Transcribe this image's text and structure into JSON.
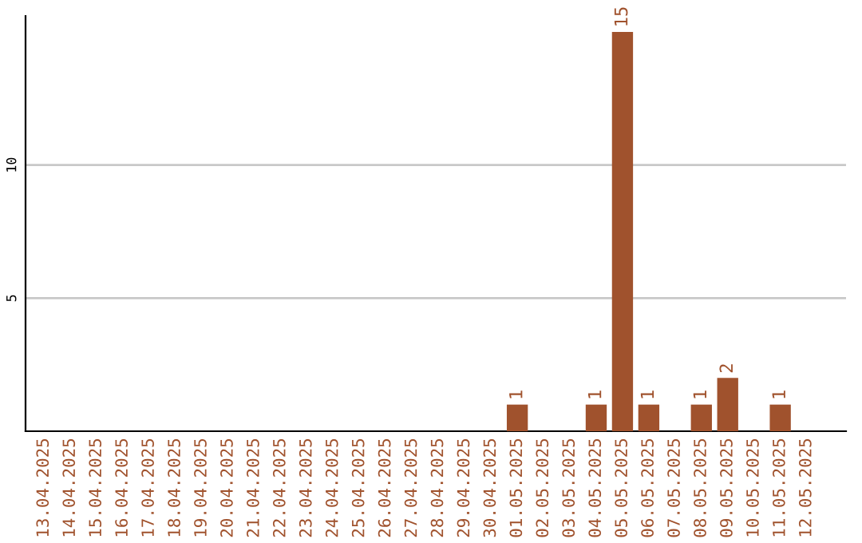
{
  "chart_data": {
    "type": "bar",
    "categories": [
      "13.04.2025",
      "14.04.2025",
      "15.04.2025",
      "16.04.2025",
      "17.04.2025",
      "18.04.2025",
      "19.04.2025",
      "20.04.2025",
      "21.04.2025",
      "22.04.2025",
      "23.04.2025",
      "24.04.2025",
      "25.04.2025",
      "26.04.2025",
      "27.04.2025",
      "28.04.2025",
      "29.04.2025",
      "30.04.2025",
      "01.05.2025",
      "02.05.2025",
      "03.05.2025",
      "04.05.2025",
      "05.05.2025",
      "06.05.2025",
      "07.05.2025",
      "08.05.2025",
      "09.05.2025",
      "10.05.2025",
      "11.05.2025",
      "12.05.2025"
    ],
    "values": [
      0,
      0,
      0,
      0,
      0,
      0,
      0,
      0,
      0,
      0,
      0,
      0,
      0,
      0,
      0,
      0,
      0,
      0,
      1,
      0,
      0,
      1,
      15,
      1,
      0,
      1,
      2,
      0,
      1,
      0
    ],
    "value_labels": [
      null,
      null,
      null,
      null,
      null,
      null,
      null,
      null,
      null,
      null,
      null,
      null,
      null,
      null,
      null,
      null,
      null,
      null,
      "1",
      null,
      null,
      "1",
      "15",
      "1",
      null,
      "1",
      "2",
      null,
      "1",
      null
    ],
    "color": "#a0522d",
    "ylim": [
      0,
      15.6
    ],
    "yticks": [
      5,
      10
    ],
    "grid": "y"
  }
}
